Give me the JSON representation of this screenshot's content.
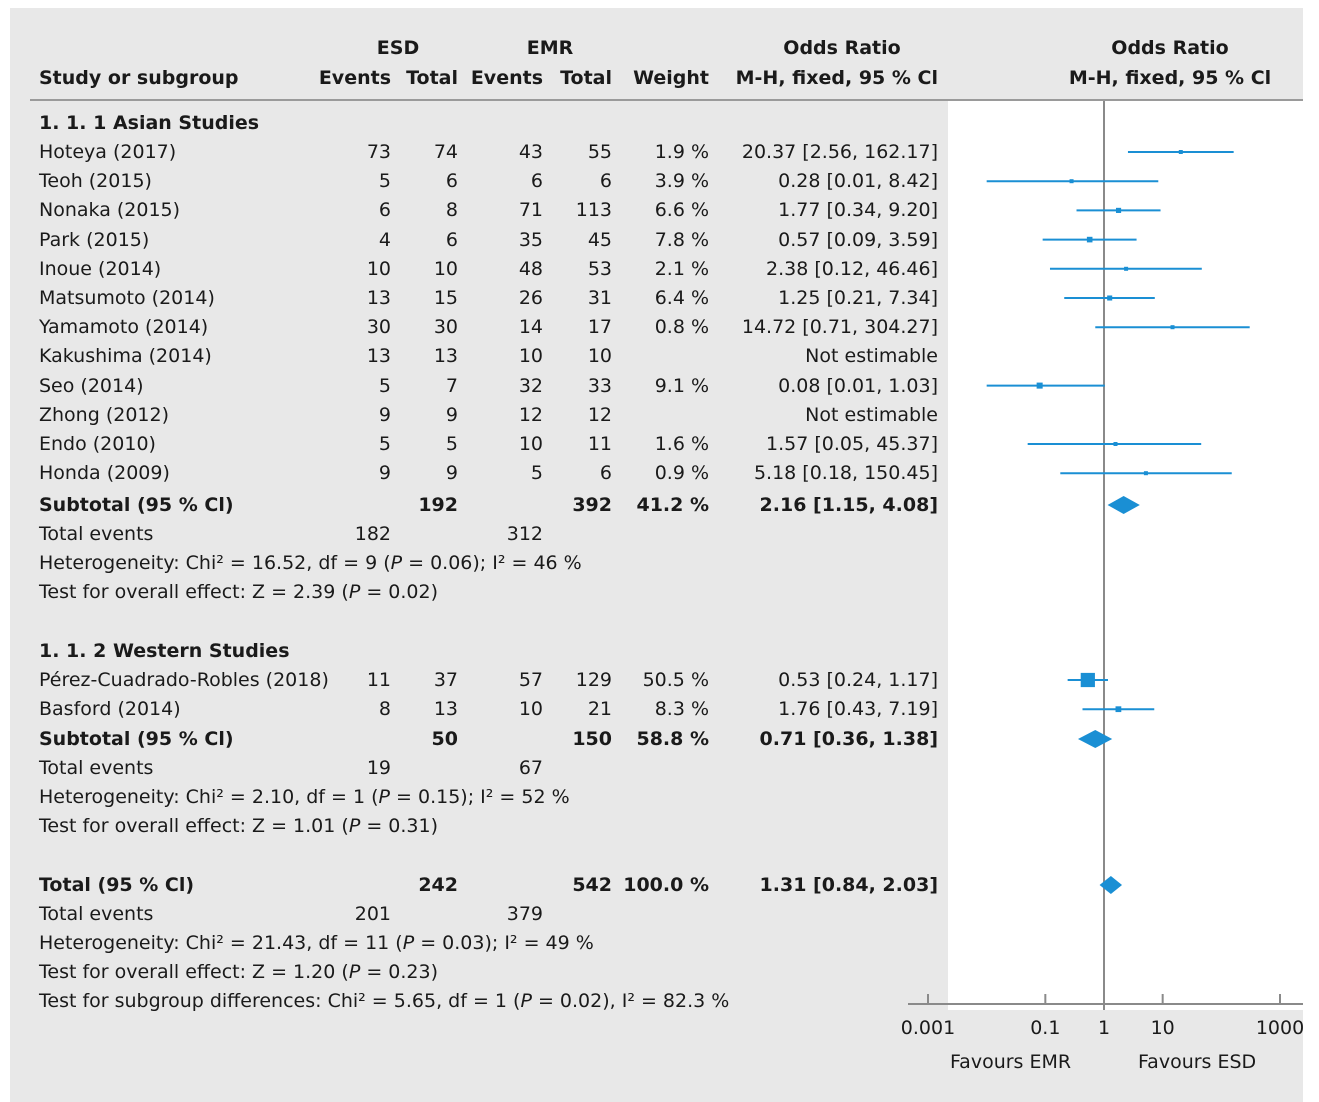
{
  "header": {
    "study_label": "Study or subgroup",
    "esd_group": "ESD",
    "emr_group": "EMR",
    "events": "Events",
    "total": "Total",
    "weight": "Weight",
    "or_title": "Odds Ratio",
    "or_method": "M-H, fixed, 95 % Cl",
    "plot_title": "Odds Ratio",
    "plot_method": "M-H, fixed, 95 % Cl"
  },
  "groups": [
    {
      "title": "1. 1. 1 Asian Studies",
      "studies": [
        {
          "name": "Hoteya (2017)",
          "esd_events": "73",
          "esd_total": "74",
          "emr_events": "43",
          "emr_total": "55",
          "weight": "1.9 %",
          "ci": "20.37 [2.56, 162.17]"
        },
        {
          "name": "Teoh (2015)",
          "esd_events": "5",
          "esd_total": "6",
          "emr_events": "6",
          "emr_total": "6",
          "weight": "3.9 %",
          "ci": "0.28 [0.01, 8.42]"
        },
        {
          "name": "Nonaka (2015)",
          "esd_events": "6",
          "esd_total": "8",
          "emr_events": "71",
          "emr_total": "113",
          "weight": "6.6 %",
          "ci": "1.77 [0.34, 9.20]"
        },
        {
          "name": "Park (2015)",
          "esd_events": "4",
          "esd_total": "6",
          "emr_events": "35",
          "emr_total": "45",
          "weight": "7.8 %",
          "ci": "0.57 [0.09, 3.59]"
        },
        {
          "name": "Inoue (2014)",
          "esd_events": "10",
          "esd_total": "10",
          "emr_events": "48",
          "emr_total": "53",
          "weight": "2.1 %",
          "ci": "2.38 [0.12, 46.46]"
        },
        {
          "name": "Matsumoto (2014)",
          "esd_events": "13",
          "esd_total": "15",
          "emr_events": "26",
          "emr_total": "31",
          "weight": "6.4 %",
          "ci": "1.25 [0.21, 7.34]"
        },
        {
          "name": "Yamamoto (2014)",
          "esd_events": "30",
          "esd_total": "30",
          "emr_events": "14",
          "emr_total": "17",
          "weight": "0.8 %",
          "ci": "14.72 [0.71, 304.27]"
        },
        {
          "name": "Kakushima (2014)",
          "esd_events": "13",
          "esd_total": "13",
          "emr_events": "10",
          "emr_total": "10",
          "weight": "",
          "ci": "Not estimable"
        },
        {
          "name": "Seo (2014)",
          "esd_events": "5",
          "esd_total": "7",
          "emr_events": "32",
          "emr_total": "33",
          "weight": "9.1 %",
          "ci": "0.08 [0.01, 1.03]"
        },
        {
          "name": "Zhong (2012)",
          "esd_events": "9",
          "esd_total": "9",
          "emr_events": "12",
          "emr_total": "12",
          "weight": "",
          "ci": "Not estimable"
        },
        {
          "name": "Endo (2010)",
          "esd_events": "5",
          "esd_total": "5",
          "emr_events": "10",
          "emr_total": "11",
          "weight": "1.6 %",
          "ci": "1.57 [0.05, 45.37]"
        },
        {
          "name": "Honda (2009)",
          "esd_events": "9",
          "esd_total": "9",
          "emr_events": "5",
          "emr_total": "6",
          "weight": "0.9 %",
          "ci": "5.18 [0.18, 150.45]"
        }
      ],
      "subtotal": {
        "label": "Subtotal (95 % Cl)",
        "esd_total": "192",
        "emr_total": "392",
        "weight": "41.2 %",
        "ci": "2.16 [1.15, 4.08]"
      },
      "total_events": {
        "label": "Total events",
        "esd": "182",
        "emr": "312"
      },
      "heterogeneity": {
        "prefix": "Heterogeneity: Chi² = 16.52, df = 9 (",
        "p_label": "P",
        "suffix": " = 0.06); I² = 46 %"
      },
      "overall": {
        "prefix": "Test for overall effect: Z = 2.39 (",
        "p_label": "P",
        "suffix": " = 0.02)"
      }
    },
    {
      "title": "1. 1. 2 Western Studies",
      "studies": [
        {
          "name": "Pérez-Cuadrado-Robles (2018)",
          "esd_events": "11",
          "esd_total": "37",
          "emr_events": "57",
          "emr_total": "129",
          "weight": "50.5 %",
          "ci": "0.53 [0.24, 1.17]"
        },
        {
          "name": "Basford (2014)",
          "esd_events": "8",
          "esd_total": "13",
          "emr_events": "10",
          "emr_total": "21",
          "weight": "8.3 %",
          "ci": "1.76 [0.43, 7.19]"
        }
      ],
      "subtotal": {
        "label": "Subtotal (95 % Cl)",
        "esd_total": "50",
        "emr_total": "150",
        "weight": "58.8 %",
        "ci": "0.71 [0.36, 1.38]"
      },
      "total_events": {
        "label": "Total events",
        "esd": "19",
        "emr": "67"
      },
      "heterogeneity": {
        "prefix": "Heterogeneity: Chi² = 2.10, df = 1 (",
        "p_label": "P",
        "suffix": " = 0.15); I² = 52 %"
      },
      "overall": {
        "prefix": "Test for overall effect: Z = 1.01 (",
        "p_label": "P",
        "suffix": " = 0.31)"
      }
    }
  ],
  "total": {
    "label": "Total (95 % Cl)",
    "esd_total": "242",
    "emr_total": "542",
    "weight": "100.0 %",
    "ci": "1.31 [0.84, 2.03]",
    "total_events": {
      "label": "Total events",
      "esd": "201",
      "emr": "379"
    },
    "heterogeneity": {
      "prefix": "Heterogeneity: Chi² = 21.43, df = 11 (",
      "p_label": "P",
      "suffix": " = 0.03); I² = 49 %"
    },
    "overall": {
      "prefix": "Test for overall effect: Z = 1.20 (",
      "p_label": "P",
      "suffix": " = 0.23)"
    },
    "subgroup": {
      "prefix": "Test for subgroup differences: Chi² = 5.65, df = 1 (",
      "p_label": "P",
      "suffix": " = 0.02), I² = 82.3 %"
    }
  },
  "axis": {
    "ticks": [
      "0.001",
      "0.1",
      "1",
      "10",
      "1000"
    ],
    "favours_left": "Favours EMR",
    "favours_right": "Favours ESD"
  },
  "colors": {
    "marker": "#1a8fd4",
    "background": "#e8e8e8",
    "plot_area": "#ffffff",
    "rule": "#9a9a9a"
  },
  "chart_data": {
    "type": "forest",
    "scale": "log",
    "xlim": [
      0.001,
      1000
    ],
    "xticks": [
      0.001,
      0.1,
      1,
      10,
      1000
    ],
    "reference_line": 1,
    "studies": [
      {
        "name": "Hoteya (2017)",
        "or": 20.37,
        "lo": 2.56,
        "hi": 162.17,
        "weight": 1.9
      },
      {
        "name": "Teoh (2015)",
        "or": 0.28,
        "lo": 0.01,
        "hi": 8.42,
        "weight": 3.9
      },
      {
        "name": "Nonaka (2015)",
        "or": 1.77,
        "lo": 0.34,
        "hi": 9.2,
        "weight": 6.6
      },
      {
        "name": "Park (2015)",
        "or": 0.57,
        "lo": 0.09,
        "hi": 3.59,
        "weight": 7.8
      },
      {
        "name": "Inoue (2014)",
        "or": 2.38,
        "lo": 0.12,
        "hi": 46.46,
        "weight": 2.1
      },
      {
        "name": "Matsumoto (2014)",
        "or": 1.25,
        "lo": 0.21,
        "hi": 7.34,
        "weight": 6.4
      },
      {
        "name": "Yamamoto (2014)",
        "or": 14.72,
        "lo": 0.71,
        "hi": 304.27,
        "weight": 0.8
      },
      {
        "name": "Kakushima (2014)",
        "or": null,
        "lo": null,
        "hi": null,
        "weight": null
      },
      {
        "name": "Seo (2014)",
        "or": 0.08,
        "lo": 0.01,
        "hi": 1.03,
        "weight": 9.1
      },
      {
        "name": "Zhong (2012)",
        "or": null,
        "lo": null,
        "hi": null,
        "weight": null
      },
      {
        "name": "Endo (2010)",
        "or": 1.57,
        "lo": 0.05,
        "hi": 45.37,
        "weight": 1.6
      },
      {
        "name": "Honda (2009)",
        "or": 5.18,
        "lo": 0.18,
        "hi": 150.45,
        "weight": 0.9
      },
      {
        "name": "Subtotal Asian Studies",
        "or": 2.16,
        "lo": 1.15,
        "hi": 4.08,
        "summary": true
      },
      {
        "name": "Pérez-Cuadrado-Robles (2018)",
        "or": 0.53,
        "lo": 0.24,
        "hi": 1.17,
        "weight": 50.5
      },
      {
        "name": "Basford (2014)",
        "or": 1.76,
        "lo": 0.43,
        "hi": 7.19,
        "weight": 8.3
      },
      {
        "name": "Subtotal Western Studies",
        "or": 0.71,
        "lo": 0.36,
        "hi": 1.38,
        "summary": true
      },
      {
        "name": "Total",
        "or": 1.31,
        "lo": 0.84,
        "hi": 2.03,
        "summary": true
      }
    ]
  }
}
